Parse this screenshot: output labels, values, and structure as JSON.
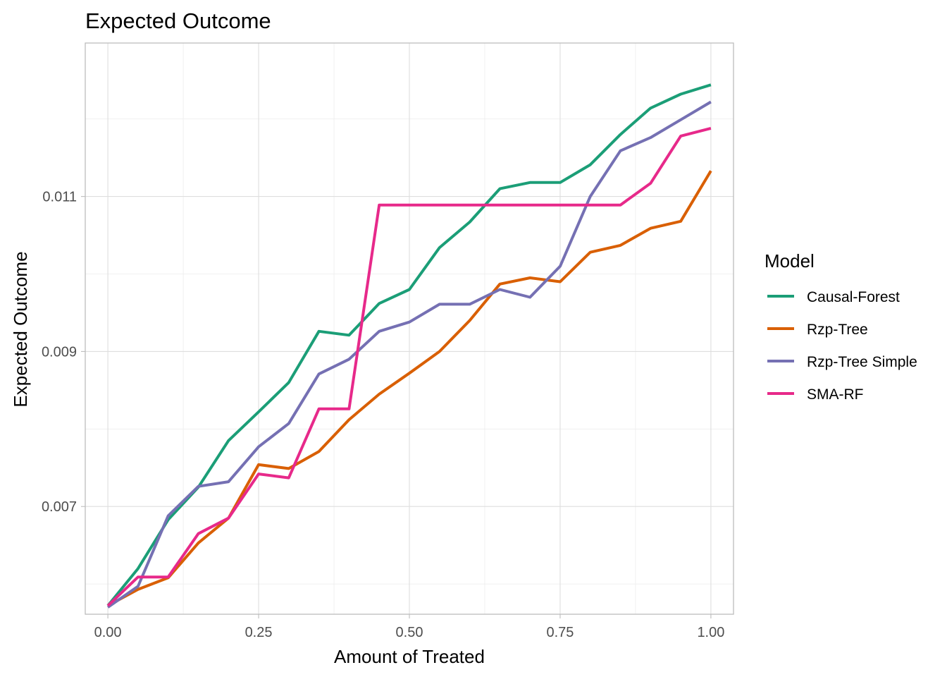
{
  "chart_data": {
    "type": "line",
    "title": "Expected Outcome",
    "xlabel": "Amount of Treated",
    "ylabel": "Expected Outcome",
    "xlim": [
      -0.0375,
      1.0375
    ],
    "ylim": [
      0.00561,
      0.01298
    ],
    "x_ticks": [
      {
        "value": 0.0,
        "label": "0.00"
      },
      {
        "value": 0.25,
        "label": "0.25"
      },
      {
        "value": 0.5,
        "label": "0.50"
      },
      {
        "value": 0.75,
        "label": "0.75"
      },
      {
        "value": 1.0,
        "label": "1.00"
      }
    ],
    "y_ticks": [
      {
        "value": 0.007,
        "label": "0.007"
      },
      {
        "value": 0.009,
        "label": "0.009"
      },
      {
        "value": 0.011,
        "label": "0.011"
      }
    ],
    "x_minor": [
      0.125,
      0.375,
      0.625,
      0.875
    ],
    "y_minor": [
      0.006,
      0.008,
      0.01,
      0.012
    ],
    "grid": true,
    "legend_title": "Model",
    "legend_position": "right",
    "x": [
      0.0,
      0.05,
      0.1,
      0.15,
      0.2,
      0.25,
      0.3,
      0.35,
      0.4,
      0.45,
      0.5,
      0.55,
      0.6,
      0.65,
      0.7,
      0.75,
      0.8,
      0.85,
      0.9,
      0.95,
      1.0
    ],
    "series": [
      {
        "name": "Causal-Forest",
        "color": "#1b9e77",
        "values": [
          0.00572,
          0.0062,
          0.00683,
          0.00725,
          0.00785,
          0.00822,
          0.0086,
          0.00926,
          0.00921,
          0.00962,
          0.0098,
          0.01034,
          0.01067,
          0.0111,
          0.01118,
          0.01118,
          0.01141,
          0.0118,
          0.01214,
          0.01232,
          0.01244
        ]
      },
      {
        "name": "Rzp-Tree",
        "color": "#d95f02",
        "values": [
          0.00572,
          0.00593,
          0.00608,
          0.00653,
          0.00685,
          0.00754,
          0.00749,
          0.00771,
          0.00812,
          0.00845,
          0.00872,
          0.009,
          0.0094,
          0.00987,
          0.00995,
          0.0099,
          0.01028,
          0.01037,
          0.01059,
          0.01068,
          0.01133
        ]
      },
      {
        "name": "Rzp-Tree Simple",
        "color": "#7570b3",
        "values": [
          0.0057,
          0.00597,
          0.00688,
          0.00726,
          0.00732,
          0.00777,
          0.00807,
          0.00871,
          0.0089,
          0.00926,
          0.00938,
          0.00961,
          0.00961,
          0.0098,
          0.0097,
          0.0101,
          0.011,
          0.01159,
          0.01176,
          0.01199,
          0.01222
        ]
      },
      {
        "name": "SMA-RF",
        "color": "#e7298a",
        "values": [
          0.00572,
          0.00609,
          0.00609,
          0.00665,
          0.00685,
          0.00742,
          0.00737,
          0.00826,
          0.00826,
          0.01089,
          0.01089,
          0.01089,
          0.01089,
          0.01089,
          0.01089,
          0.01089,
          0.01089,
          0.01089,
          0.01117,
          0.01178,
          0.01188
        ]
      }
    ]
  }
}
